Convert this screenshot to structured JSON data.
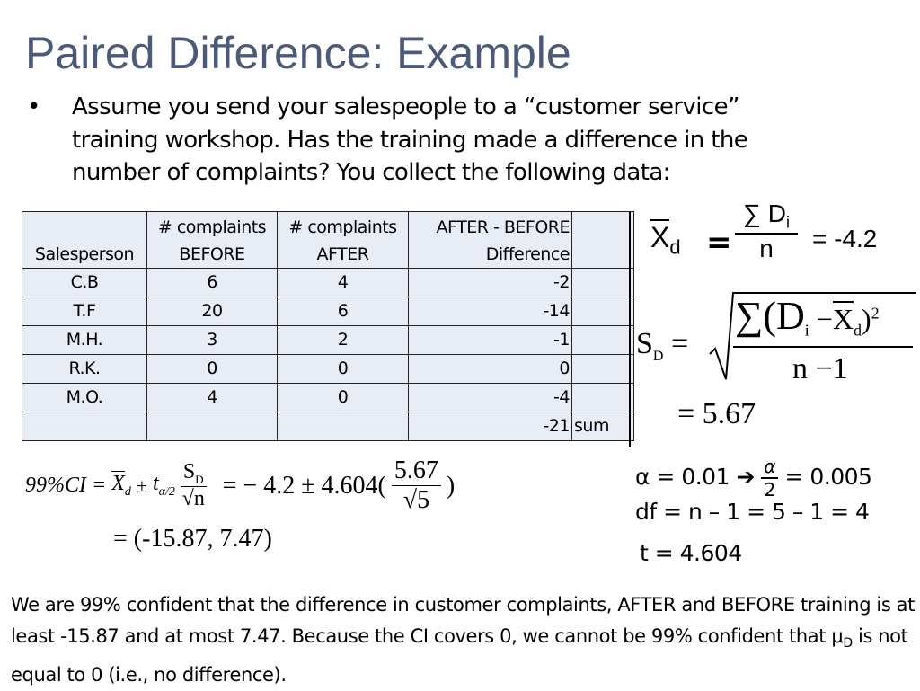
{
  "title": "Paired Difference:  Example",
  "bullet": {
    "symbol": "•",
    "lines": [
      "Assume you send your salespeople to a “customer service”",
      "training workshop.  Has the training made a difference in the",
      "number of complaints?  You collect the following data:"
    ]
  },
  "table": {
    "headers": [
      "Salesperson",
      "# complaints BEFORE",
      "# complaints AFTER",
      "AFTER - BEFORE Difference",
      ""
    ],
    "header_lines": [
      [
        "",
        "Salesperson"
      ],
      [
        "# complaints",
        "BEFORE"
      ],
      [
        "# complaints",
        "AFTER"
      ],
      [
        "AFTER - BEFORE",
        "Difference"
      ],
      [
        "",
        ""
      ]
    ],
    "rows": [
      [
        "C.B",
        "6",
        "4",
        "-2",
        ""
      ],
      [
        "T.F",
        "20",
        "6",
        "-14",
        ""
      ],
      [
        "M.H.",
        "3",
        "2",
        "-1",
        ""
      ],
      [
        "R.K.",
        "0",
        "0",
        "0",
        ""
      ],
      [
        "M.O.",
        "4",
        "0",
        "-4",
        ""
      ],
      [
        "",
        "",
        "",
        "-21",
        "sum"
      ]
    ]
  },
  "mean_formula": {
    "lhs": "X",
    "lhs_sub": "d",
    "eq": "=",
    "num": "∑ D",
    "num_sub": "i",
    "den": "n",
    "result": "= -4.2"
  },
  "sd_formula": {
    "lhs": "S",
    "lhs_sub": "D",
    "eq": "=",
    "num": "∑(D",
    "num_sub": "i",
    "minus": "−",
    "xbar": "X",
    "xbar_sub": "d",
    "close": ")",
    "power": "2",
    "den": "n −1",
    "result": "= 5.67"
  },
  "alpha": {
    "text": "α = 0.01",
    "arrow": "➔",
    "frac_num": "α",
    "frac_den": "2",
    "result": "= 0.005"
  },
  "df": "df = n – 1 = 5 – 1 = 4",
  "t": "t = 4.604",
  "ci_formula": {
    "lhs": "99%CI =",
    "xbar": "X",
    "xbar_sub": "d",
    "pm": "±",
    "t": "t",
    "t_sub": "α/2",
    "sd": "S",
    "sd_sub": "D",
    "sqrt_n": "√n",
    "eq2": "= − 4.2 ± 4.604(",
    "num": "5.67",
    "den": "√5",
    "close": ")",
    "result": "= (-15.87, 7.47)"
  },
  "conclusion": {
    "part1": "We are 99% confident that the difference in customer complaints, AFTER and BEFORE training is at least -15.87 and at most 7.47.  Because the CI covers 0, we cannot be 99% confident that μ",
    "sub": "D",
    "part2": " is not equal to 0 (i.e., no difference)."
  }
}
